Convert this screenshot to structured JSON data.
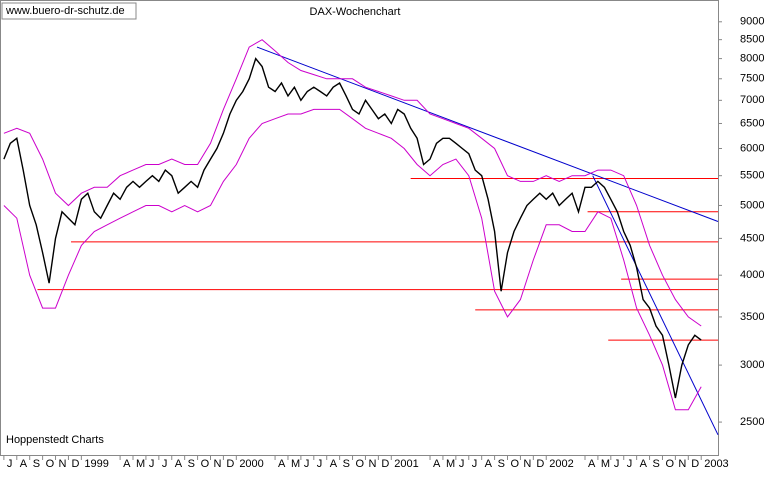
{
  "chart_data": {
    "type": "line",
    "title": "DAX-Wochenchart",
    "source_label": "www.buero-dr-schutz.de",
    "credit": "Hoppenstedt Charts",
    "log_scale": true,
    "ylim": [
      2250,
      9650
    ],
    "yticks": [
      2500,
      3000,
      3500,
      4000,
      4500,
      5000,
      5500,
      6000,
      6500,
      7000,
      7500,
      8000,
      8500,
      9000
    ],
    "xlim": [
      -0.3,
      55.3
    ],
    "xticks": [
      {
        "value": 0,
        "label": "J"
      },
      {
        "value": 1,
        "label": "A"
      },
      {
        "value": 2,
        "label": "S"
      },
      {
        "value": 3,
        "label": "O"
      },
      {
        "value": 4,
        "label": "N"
      },
      {
        "value": 5,
        "label": "D"
      },
      {
        "value": 6,
        "label": "1999"
      },
      {
        "value": 9,
        "label": "A"
      },
      {
        "value": 10,
        "label": "M"
      },
      {
        "value": 11,
        "label": "J"
      },
      {
        "value": 12,
        "label": "J"
      },
      {
        "value": 13,
        "label": "A"
      },
      {
        "value": 14,
        "label": "S"
      },
      {
        "value": 15,
        "label": "O"
      },
      {
        "value": 16,
        "label": "N"
      },
      {
        "value": 17,
        "label": "D"
      },
      {
        "value": 18,
        "label": "2000"
      },
      {
        "value": 21,
        "label": "A"
      },
      {
        "value": 22,
        "label": "M"
      },
      {
        "value": 23,
        "label": "J"
      },
      {
        "value": 24,
        "label": "J"
      },
      {
        "value": 25,
        "label": "A"
      },
      {
        "value": 26,
        "label": "S"
      },
      {
        "value": 27,
        "label": "O"
      },
      {
        "value": 28,
        "label": "N"
      },
      {
        "value": 29,
        "label": "D"
      },
      {
        "value": 30,
        "label": "2001"
      },
      {
        "value": 33,
        "label": "A"
      },
      {
        "value": 34,
        "label": "M"
      },
      {
        "value": 35,
        "label": "J"
      },
      {
        "value": 36,
        "label": "J"
      },
      {
        "value": 37,
        "label": "A"
      },
      {
        "value": 38,
        "label": "S"
      },
      {
        "value": 39,
        "label": "O"
      },
      {
        "value": 40,
        "label": "N"
      },
      {
        "value": 41,
        "label": "D"
      },
      {
        "value": 42,
        "label": "2002"
      },
      {
        "value": 45,
        "label": "A"
      },
      {
        "value": 46,
        "label": "M"
      },
      {
        "value": 47,
        "label": "J"
      },
      {
        "value": 48,
        "label": "J"
      },
      {
        "value": 49,
        "label": "A"
      },
      {
        "value": 50,
        "label": "S"
      },
      {
        "value": 51,
        "label": "O"
      },
      {
        "value": 52,
        "label": "N"
      },
      {
        "value": 53,
        "label": "D"
      },
      {
        "value": 54,
        "label": "2003"
      }
    ],
    "series": [
      {
        "name": "DAX",
        "color": "#000000",
        "x": [
          0,
          0.5,
          1,
          1.5,
          2,
          2.5,
          3,
          3.5,
          4,
          4.5,
          5,
          5.5,
          6,
          6.5,
          7,
          7.5,
          8,
          8.5,
          9,
          9.5,
          10,
          10.5,
          11,
          11.5,
          12,
          12.5,
          13,
          13.5,
          14,
          14.5,
          15,
          15.5,
          16,
          16.5,
          17,
          17.5,
          18,
          18.5,
          19,
          19.5,
          20,
          20.5,
          21,
          21.5,
          22,
          22.5,
          23,
          23.5,
          24,
          24.5,
          25,
          25.5,
          26,
          26.5,
          27,
          27.5,
          28,
          28.5,
          29,
          29.5,
          30,
          30.5,
          31,
          31.5,
          32,
          32.5,
          33,
          33.5,
          34,
          34.5,
          35,
          35.5,
          36,
          36.5,
          37,
          37.5,
          38,
          38.5,
          39,
          39.5,
          40,
          40.5,
          41,
          41.5,
          42,
          42.5,
          43,
          43.5,
          44,
          44.5,
          45,
          45.5,
          46,
          46.5,
          47,
          47.5,
          48,
          48.5,
          49,
          49.5,
          50,
          50.5,
          51,
          51.5,
          52,
          52.5,
          53,
          53.5,
          54
        ],
        "values": [
          5800,
          6100,
          6200,
          5600,
          5000,
          4700,
          4300,
          3900,
          4500,
          4900,
          4800,
          4700,
          5100,
          5200,
          4900,
          4800,
          5000,
          5200,
          5100,
          5300,
          5400,
          5300,
          5400,
          5500,
          5400,
          5600,
          5500,
          5200,
          5300,
          5400,
          5300,
          5600,
          5800,
          6000,
          6300,
          6700,
          7000,
          7200,
          7500,
          8000,
          7800,
          7300,
          7200,
          7400,
          7100,
          7300,
          7000,
          7200,
          7300,
          7200,
          7100,
          7300,
          7400,
          7100,
          6800,
          6700,
          7000,
          6800,
          6600,
          6700,
          6500,
          6800,
          6700,
          6400,
          6200,
          5700,
          5800,
          6100,
          6200,
          6200,
          6100,
          6000,
          5900,
          5600,
          5500,
          5100,
          4600,
          3800,
          4300,
          4600,
          4800,
          5000,
          5100,
          5200,
          5100,
          5200,
          5000,
          5100,
          5200,
          4900,
          5300,
          5300,
          5400,
          5300,
          5100,
          4900,
          4600,
          4400,
          4100,
          3700,
          3600,
          3400,
          3300,
          3000,
          2700,
          3000,
          3200,
          3300,
          3250
        ]
      },
      {
        "name": "Upper band",
        "color": "#cc00cc",
        "x": [
          0,
          1,
          2,
          3,
          4,
          5,
          6,
          7,
          8,
          9,
          10,
          11,
          12,
          13,
          14,
          15,
          16,
          17,
          18,
          19,
          20,
          21,
          22,
          23,
          24,
          25,
          26,
          27,
          28,
          29,
          30,
          31,
          32,
          33,
          34,
          35,
          36,
          37,
          38,
          39,
          40,
          41,
          42,
          43,
          44,
          45,
          46,
          47,
          48,
          49,
          50,
          51,
          52,
          53,
          54
        ],
        "values": [
          6300,
          6400,
          6300,
          5800,
          5200,
          5000,
          5200,
          5300,
          5300,
          5500,
          5600,
          5700,
          5700,
          5800,
          5700,
          5700,
          6100,
          6800,
          7500,
          8300,
          8500,
          8200,
          7900,
          7700,
          7600,
          7500,
          7500,
          7500,
          7300,
          7200,
          7100,
          7000,
          7000,
          6700,
          6600,
          6500,
          6400,
          6200,
          6000,
          5500,
          5400,
          5400,
          5500,
          5400,
          5500,
          5500,
          5600,
          5600,
          5500,
          5000,
          4400,
          4000,
          3700,
          3500,
          3400
        ]
      },
      {
        "name": "Lower band",
        "color": "#cc00cc",
        "x": [
          0,
          1,
          2,
          3,
          4,
          5,
          6,
          7,
          8,
          9,
          10,
          11,
          12,
          13,
          14,
          15,
          16,
          17,
          18,
          19,
          20,
          21,
          22,
          23,
          24,
          25,
          26,
          27,
          28,
          29,
          30,
          31,
          32,
          33,
          34,
          35,
          36,
          37,
          38,
          39,
          40,
          41,
          42,
          43,
          44,
          45,
          46,
          47,
          48,
          49,
          50,
          51,
          52,
          53,
          54
        ],
        "values": [
          5000,
          4800,
          4000,
          3600,
          3600,
          4000,
          4400,
          4600,
          4700,
          4800,
          4900,
          5000,
          5000,
          4900,
          5000,
          4900,
          5000,
          5400,
          5700,
          6200,
          6500,
          6600,
          6700,
          6700,
          6800,
          6800,
          6800,
          6600,
          6400,
          6300,
          6200,
          6000,
          5700,
          5500,
          5700,
          5800,
          5500,
          4800,
          3800,
          3500,
          3700,
          4200,
          4700,
          4700,
          4600,
          4600,
          4900,
          4800,
          4200,
          3600,
          3300,
          3000,
          2600,
          2600,
          2800
        ]
      }
    ],
    "hlines": [
      {
        "value": 5450,
        "x_start": 31.5,
        "color": "#ff0000"
      },
      {
        "value": 4900,
        "x_start": 45.2,
        "color": "#ff0000"
      },
      {
        "value": 4450,
        "x_start": 5.2,
        "color": "#ff0000"
      },
      {
        "value": 3950,
        "x_start": 47.8,
        "color": "#ff0000"
      },
      {
        "value": 3820,
        "x_start": 2.6,
        "color": "#ff0000"
      },
      {
        "value": 3580,
        "x_start": 36.5,
        "color": "#ff0000"
      },
      {
        "value": 3250,
        "x_start": 46.8,
        "color": "#ff0000"
      }
    ],
    "trend_lines": [
      {
        "x": [
          19.6,
          55.3
        ],
        "y": [
          8300,
          4750
        ],
        "color": "#0000cc"
      },
      {
        "x": [
          45.6,
          55.3
        ],
        "y": [
          5500,
          2400
        ],
        "color": "#0000cc"
      }
    ]
  }
}
